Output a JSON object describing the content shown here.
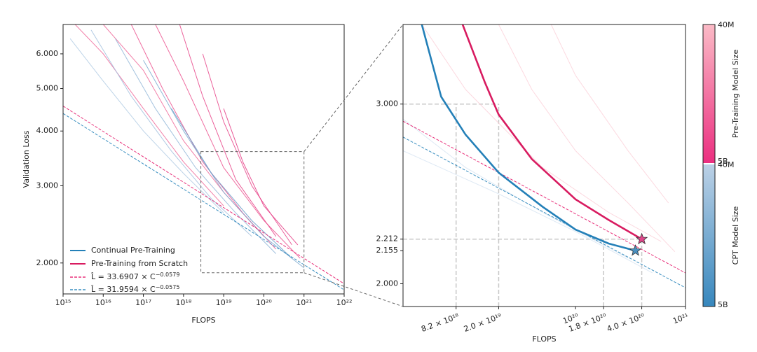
{
  "chart_data": [
    {
      "type": "line",
      "xlabel": "FLOPS",
      "ylabel": "Validation Loss",
      "log_x": true,
      "log_y": true,
      "xlim": [
        1000000000000000.0,
        1e+22
      ],
      "ylim": [
        1.7,
        7.0
      ],
      "xticks": [
        {
          "value": 1000000000000000.0,
          "label": "10¹⁵"
        },
        {
          "value": 1e+16,
          "label": "10¹⁶"
        },
        {
          "value": 1e+17,
          "label": "10¹⁷"
        },
        {
          "value": 1e+18,
          "label": "10¹⁸"
        },
        {
          "value": 1e+19,
          "label": "10¹⁹"
        },
        {
          "value": 1e+20,
          "label": "10²⁰"
        },
        {
          "value": 1e+21,
          "label": "10²¹"
        },
        {
          "value": 1e+22,
          "label": "10²²"
        }
      ],
      "yticks": [
        {
          "value": 2,
          "label": "2.000"
        },
        {
          "value": 3,
          "label": "3.000"
        },
        {
          "value": 4,
          "label": "4.000"
        },
        {
          "value": 5,
          "label": "5.000"
        },
        {
          "value": 6,
          "label": "6.000"
        }
      ],
      "series": [
        {
          "name": "Continual Pre-Training",
          "color": "#2480b8"
        },
        {
          "name": "Pre-Training from Scratch",
          "color": "#d81b60"
        }
      ],
      "fits": [
        {
          "a": 33.6907,
          "b": -0.0579,
          "color": "#e8307a",
          "label_text": "L̂ = 33.6907 × C",
          "label_exp": "−0.0579"
        },
        {
          "a": 31.9594,
          "b": -0.0575,
          "color": "#3a8fc0",
          "label_text": "L̂ = 31.9594 × C",
          "label_exp": "−0.0575"
        }
      ],
      "runs": [
        {
          "color": "#f06a9a",
          "x": [
            2000000000000000.0,
            1e+16,
            1e+17,
            1e+18,
            1e+19
          ],
          "values": [
            7.0,
            6.0,
            4.5,
            3.4,
            2.7
          ]
        },
        {
          "color": "#f06a9a",
          "x": [
            1e+16,
            1e+17,
            1e+18,
            1e+19,
            1e+20
          ],
          "values": [
            7.0,
            5.5,
            3.8,
            2.9,
            2.3
          ]
        },
        {
          "color": "#ec5590",
          "x": [
            5e+16,
            3e+17,
            3e+18,
            3e+19,
            2e+20
          ],
          "values": [
            7.0,
            5.0,
            3.4,
            2.6,
            2.15
          ]
        },
        {
          "color": "#ec5590",
          "x": [
            2e+17,
            1e+18,
            1e+19,
            1e+20,
            8e+20
          ],
          "values": [
            7.0,
            5.2,
            3.3,
            2.5,
            2.05
          ]
        },
        {
          "color": "#e8458a",
          "x": [
            8e+17,
            3e+18,
            2e+19,
            2e+20
          ],
          "values": [
            7.0,
            4.8,
            3.1,
            2.3
          ]
        },
        {
          "color": "#e8458a",
          "x": [
            3e+18,
            1e+19,
            5e+19,
            5e+20
          ],
          "values": [
            6.0,
            4.2,
            3.0,
            2.2
          ]
        },
        {
          "color": "#e53a84",
          "x": [
            1e+19,
            3e+19,
            1e+20,
            7e+20
          ],
          "values": [
            4.5,
            3.4,
            2.7,
            2.2
          ]
        },
        {
          "color": "#b3cce4",
          "x": [
            1500000000000000.0,
            1e+16,
            1e+17,
            1e+18,
            1e+19
          ],
          "values": [
            6.5,
            5.2,
            4.0,
            3.2,
            2.6
          ]
        },
        {
          "color": "#a3c1de",
          "x": [
            5000000000000000.0,
            5e+16,
            5e+17,
            5e+18,
            5e+19
          ],
          "values": [
            6.8,
            4.8,
            3.6,
            2.8,
            2.3
          ]
        },
        {
          "color": "#93b7d8",
          "x": [
            2e+16,
            2e+17,
            2e+18,
            2e+19,
            2e+20
          ],
          "values": [
            6.5,
            4.5,
            3.3,
            2.6,
            2.1
          ]
        },
        {
          "color": "#7eaad0",
          "x": [
            1e+17,
            1e+18,
            1e+19,
            1e+20,
            1e+21
          ],
          "values": [
            5.8,
            4.0,
            2.9,
            2.3,
            1.95
          ]
        },
        {
          "color": "#6a9cc8",
          "x": [
            5e+17,
            5e+18,
            5e+19,
            5e+20
          ],
          "values": [
            4.5,
            3.2,
            2.5,
            2.05
          ]
        }
      ]
    },
    {
      "type": "line",
      "xlabel": "FLOPS",
      "log_x": true,
      "log_y": true,
      "xlim": [
        2.7e+18,
        1e+21
      ],
      "ylim": [
        1.9,
        3.59
      ],
      "xticks": [
        {
          "value": 8.2e+18,
          "label": "8.2 × 10¹⁸"
        },
        {
          "value": 2e+19,
          "label": "2.0 × 10¹⁹"
        },
        {
          "value": 1e+20,
          "label": "10²⁰"
        },
        {
          "value": 1.8e+20,
          "label": "1.8 × 10²⁰"
        },
        {
          "value": 4e+20,
          "label": "4.0 × 10²⁰"
        },
        {
          "value": 1e+21,
          "label": "10²¹"
        }
      ],
      "yticks": [
        {
          "value": 2,
          "label": "2.000"
        },
        {
          "value": 2.155,
          "label": "2.155"
        },
        {
          "value": 2.212,
          "label": "2.212"
        },
        {
          "value": 3,
          "label": "3.000"
        }
      ],
      "series": [
        {
          "color": "#2480b8",
          "x": [
            4e+18,
            6e+18,
            1e+19,
            2e+19,
            5e+19,
            1e+20,
            2e+20,
            3.5e+20
          ],
          "values": [
            3.59,
            3.05,
            2.8,
            2.57,
            2.38,
            2.26,
            2.19,
            2.155
          ]
        },
        {
          "color": "#d81b60",
          "x": [
            9.4e+18,
            1.5e+19,
            2e+19,
            4e+19,
            1e+20,
            2e+20,
            4e+20
          ],
          "values": [
            3.59,
            3.15,
            2.93,
            2.65,
            2.42,
            2.31,
            2.212
          ]
        }
      ],
      "stars": [
        {
          "x": 4e+20,
          "y": 2.212,
          "color": "#e0468a"
        },
        {
          "x": 3.5e+20,
          "y": 2.155,
          "color": "#4a90c0"
        }
      ],
      "runs": [
        {
          "color": "#fbd0d8",
          "x": [
            4e+18,
            1e+19,
            5e+19,
            2e+20,
            6e+20
          ],
          "values": [
            3.59,
            3.1,
            2.6,
            2.35,
            2.2
          ]
        },
        {
          "color": "#fbd0d8",
          "x": [
            2e+19,
            4e+19,
            1e+20,
            3e+20,
            8e+20
          ],
          "values": [
            3.59,
            3.1,
            2.7,
            2.4,
            2.15
          ]
        },
        {
          "color": "#fbd0d8",
          "x": [
            6e+19,
            1e+20,
            3e+20,
            7e+20
          ],
          "values": [
            3.59,
            3.2,
            2.7,
            2.4
          ]
        },
        {
          "color": "#d6e4f1",
          "x": [
            2.7e+18,
            1e+19,
            5e+19,
            3e+20
          ],
          "values": [
            2.9,
            2.6,
            2.35,
            2.12
          ]
        },
        {
          "color": "#d6e4f1",
          "x": [
            2.7e+18,
            2e+19,
            1e+20,
            5e+20
          ],
          "values": [
            2.7,
            2.45,
            2.25,
            2.05
          ]
        }
      ]
    }
  ],
  "colorbar": [
    {
      "label": "Pre-Training Model Size",
      "top": "40M",
      "bottom": "5B",
      "colors": [
        "#fbbac6",
        "#eb2f80"
      ]
    },
    {
      "label": "CPT Model Size",
      "top": "40M",
      "bottom": "5B",
      "colors": [
        "#bcd1e6",
        "#3787bd"
      ]
    }
  ]
}
